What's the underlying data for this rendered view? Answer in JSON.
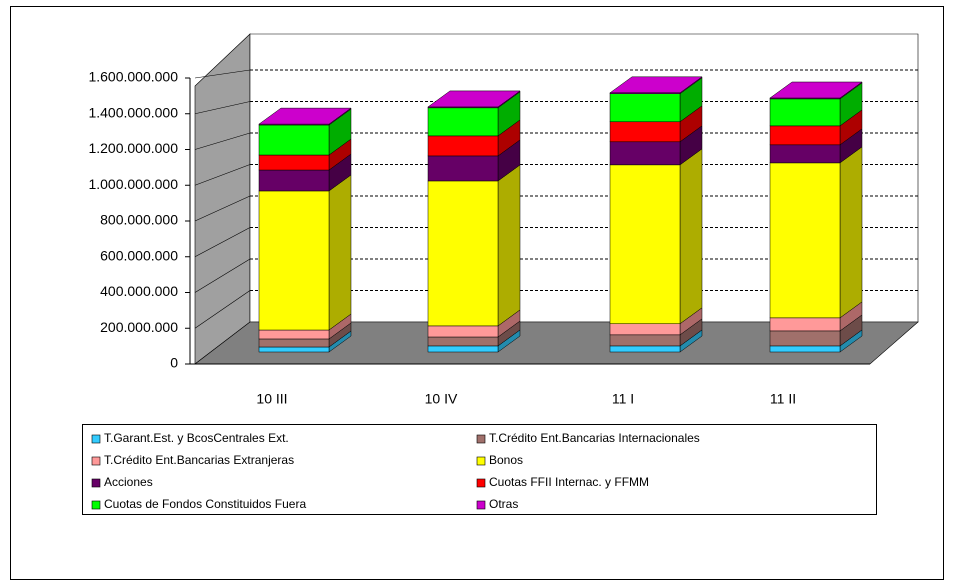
{
  "chart_data": {
    "type": "bar3d-stacked",
    "categories": [
      "10 III",
      "10 IV",
      "11 I",
      "11 II"
    ],
    "series": [
      {
        "name": "T.Garant.Est. y BcosCentrales  Ext.",
        "color": "#33ccff",
        "values": [
          28000000,
          34000000,
          34000000,
          34000000
        ]
      },
      {
        "name": "T.Crédito Ent.Bancarias  Internacionales",
        "color": "#a0706b",
        "values": [
          45000000,
          50000000,
          62000000,
          84000000
        ]
      },
      {
        "name": "T.Crédito Ent.Bancarias  Extranjeras",
        "color": "#ff9999",
        "values": [
          50000000,
          62000000,
          62000000,
          73000000
        ]
      },
      {
        "name": "Bonos",
        "color": "#ffff00",
        "values": [
          778000000,
          811000000,
          889000000,
          867000000
        ]
      },
      {
        "name": "Acciones",
        "color": "#660066",
        "values": [
          117000000,
          140000000,
          129000000,
          101000000
        ]
      },
      {
        "name": "Cuotas FFII Internac. y FFMM",
        "color": "#ff0000",
        "values": [
          84000000,
          112000000,
          112000000,
          106000000
        ]
      },
      {
        "name": "Cuotas de Fondos Constituidos  Fuera",
        "color": "#00ff00",
        "values": [
          168000000,
          157000000,
          157000000,
          151000000
        ]
      },
      {
        "name": "Otras",
        "color": "#cc00cc",
        "values": [
          5000000,
          5000000,
          5000000,
          5000000
        ]
      }
    ],
    "ylim": [
      0,
      1600000000
    ],
    "yticks": [
      0,
      {
        "value": 200000000,
        "label": "200.000.000"
      },
      {
        "value": 400000000,
        "label": "400.000.000"
      },
      {
        "value": 600000000,
        "label": "600.000.000"
      },
      {
        "value": 800000000,
        "label": "800.000.000"
      },
      {
        "value": 1000000000,
        "label": "1.000.000.000"
      },
      {
        "value": 1200000000,
        "label": "1.200.000.000"
      },
      {
        "value": 1400000000,
        "label": "1.400.000.000"
      },
      {
        "value": 1600000000,
        "label": "1.600.000.000"
      }
    ],
    "grid": true
  }
}
